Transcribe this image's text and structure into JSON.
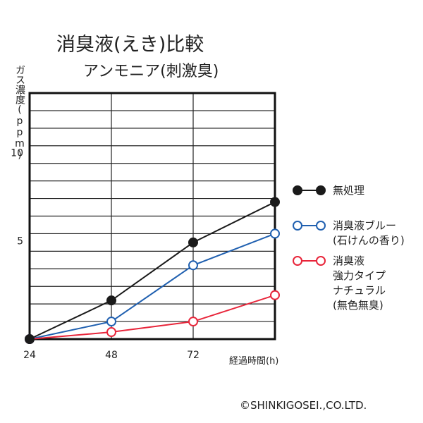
{
  "chart_data": {
    "type": "line",
    "title": "消臭液(えき)比較",
    "subtitle": "アンモニア(刺激臭)",
    "ylabel": "ガス濃度(ppm)",
    "xlabel": "経過時間(h)",
    "x": [
      24,
      48,
      72,
      96
    ],
    "x_tick_labels": [
      "24",
      "48",
      "72"
    ],
    "y_tick_labels": [
      "5",
      "10"
    ],
    "xlim": [
      24,
      96
    ],
    "ylim": [
      0,
      14
    ],
    "grid": true,
    "legend_position": "right",
    "series": [
      {
        "name": "無処理",
        "label_lines": [
          "無処理"
        ],
        "color": "#1a1a1a",
        "marker": "filled-circle",
        "values": [
          0,
          2.2,
          5.5,
          7.8
        ]
      },
      {
        "name": "消臭液ブルー(石けんの香り)",
        "label_lines": [
          "消臭液ブルー",
          "(石けんの香り)"
        ],
        "color": "#2060b0",
        "marker": "open-circle",
        "values": [
          0,
          1.0,
          4.2,
          6.0
        ]
      },
      {
        "name": "消臭液強力タイプナチュラル(無色無臭)",
        "label_lines": [
          "消臭液",
          "強力タイプ",
          "ナチュラル",
          "(無色無臭)"
        ],
        "color": "#e8253a",
        "marker": "open-circle",
        "values": [
          0,
          0.4,
          1.0,
          2.5
        ]
      }
    ]
  },
  "copyright": "©SHINKIGOSEI.,CO.LTD."
}
